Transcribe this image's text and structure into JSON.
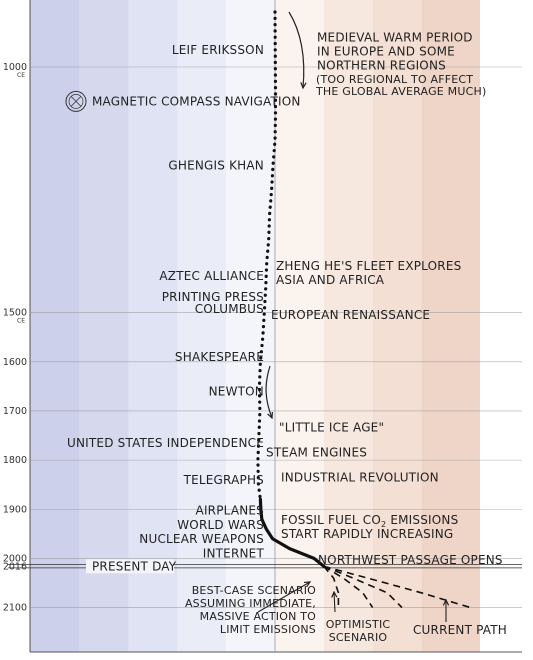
{
  "chart_data": {
    "type": "line",
    "orientation": "vertical-time",
    "y_axis": {
      "ticks": [
        {
          "year": 1000,
          "label": "1000",
          "sub": "CE"
        },
        {
          "year": 1500,
          "label": "1500",
          "sub": "CE"
        },
        {
          "year": 1600,
          "label": "1600"
        },
        {
          "year": 1700,
          "label": "1700"
        },
        {
          "year": 1800,
          "label": "1800"
        },
        {
          "year": 1900,
          "label": "1900"
        },
        {
          "year": 2000,
          "label": "2000"
        },
        {
          "year": 2016,
          "label": "2016"
        },
        {
          "year": 2100,
          "label": "2100"
        }
      ],
      "ylim": [
        888,
        2150
      ]
    },
    "x_axis": {
      "xlim": [
        -6,
        4.2
      ],
      "zero_line": 0
    },
    "present_day": {
      "year": 2016,
      "label": "PRESENT DAY"
    },
    "background_bands": [
      {
        "x0": -6.0,
        "x1": -5.0,
        "color": "#c2c6e6"
      },
      {
        "x0": -5.0,
        "x1": -4.0,
        "color": "#ccd0ea"
      },
      {
        "x0": -4.0,
        "x1": -3.0,
        "color": "#d6d9ee"
      },
      {
        "x0": -3.0,
        "x1": -2.0,
        "color": "#e0e3f3"
      },
      {
        "x0": -2.0,
        "x1": -1.0,
        "color": "#eaecf7"
      },
      {
        "x0": -1.0,
        "x1": 0.0,
        "color": "#f4f5fb"
      },
      {
        "x0": 0.0,
        "x1": 1.0,
        "color": "#fbf3ee"
      },
      {
        "x0": 1.0,
        "x1": 2.0,
        "color": "#f7e8df"
      },
      {
        "x0": 2.0,
        "x1": 3.0,
        "color": "#f3dfd3"
      },
      {
        "x0": 3.0,
        "x1": 4.2,
        "color": "#eed5c8"
      }
    ],
    "series": [
      {
        "style": "dotted",
        "points": [
          [
            888,
            0.0
          ],
          [
            1050,
            0.01
          ],
          [
            1100,
            0.01
          ],
          [
            1150,
            0.0
          ],
          [
            1200,
            -0.04
          ],
          [
            1250,
            -0.07
          ],
          [
            1300,
            -0.11
          ],
          [
            1350,
            -0.13
          ],
          [
            1400,
            -0.17
          ],
          [
            1450,
            -0.19
          ],
          [
            1500,
            -0.22
          ],
          [
            1550,
            -0.25
          ],
          [
            1600,
            -0.3
          ],
          [
            1650,
            -0.32
          ],
          [
            1700,
            -0.31
          ],
          [
            1750,
            -0.33
          ],
          [
            1800,
            -0.35
          ],
          [
            1850,
            -0.34
          ],
          [
            1880,
            -0.3
          ]
        ]
      },
      {
        "style": "solid",
        "points": [
          [
            1880,
            -0.3
          ],
          [
            1900,
            -0.29
          ],
          [
            1920,
            -0.27
          ],
          [
            1940,
            -0.18
          ],
          [
            1960,
            -0.05
          ],
          [
            1980,
            0.3
          ],
          [
            2000,
            0.8
          ],
          [
            2016,
            1.0
          ]
        ]
      },
      {
        "style": "dashed",
        "label_key": "best_case",
        "points": [
          [
            2016,
            1.0
          ],
          [
            2040,
            1.2
          ],
          [
            2070,
            1.3
          ],
          [
            2100,
            1.3
          ]
        ]
      },
      {
        "style": "dashed",
        "label_key": "optimistic",
        "points": [
          [
            2016,
            1.0
          ],
          [
            2040,
            1.4
          ],
          [
            2070,
            1.8
          ],
          [
            2100,
            2.0
          ]
        ]
      },
      {
        "style": "dashed",
        "label_key": "optimistic",
        "points": [
          [
            2016,
            1.0
          ],
          [
            2040,
            1.6
          ],
          [
            2070,
            2.3
          ],
          [
            2100,
            2.6
          ]
        ]
      },
      {
        "style": "dashed",
        "label_key": "current",
        "points": [
          [
            2016,
            1.0
          ],
          [
            2040,
            1.9
          ],
          [
            2070,
            3.0
          ],
          [
            2100,
            4.0
          ]
        ]
      }
    ],
    "annotations": {
      "left": [
        {
          "year": 965,
          "lines": [
            "LEIF ERIKSSON"
          ]
        },
        {
          "year": 1070,
          "lines": [
            "MAGNETIC COMPASS NAVIGATION"
          ],
          "icon": "compass-icon"
        },
        {
          "year": 1200,
          "lines": [
            "GHENGIS KHAN"
          ]
        },
        {
          "year": 1425,
          "lines": [
            "AZTEC ALLIANCE"
          ]
        },
        {
          "year": 1468,
          "lines": [
            "PRINTING PRESS"
          ]
        },
        {
          "year": 1492,
          "lines": [
            "COLUMBUS"
          ]
        },
        {
          "year": 1590,
          "lines": [
            "SHAKESPEARE"
          ]
        },
        {
          "year": 1660,
          "lines": [
            "NEWTON"
          ]
        },
        {
          "year": 1765,
          "lines": [
            "UNITED STATES INDEPENDENCE"
          ]
        },
        {
          "year": 1840,
          "lines": [
            "TELEGRAPHS"
          ]
        },
        {
          "year": 1903,
          "lines": [
            "AIRPLANES"
          ]
        },
        {
          "year": 1932,
          "lines": [
            "WORLD WARS"
          ]
        },
        {
          "year": 1961,
          "lines": [
            "NUCLEAR WEAPONS"
          ]
        },
        {
          "year": 1990,
          "lines": [
            "INTERNET"
          ]
        }
      ],
      "right": [
        {
          "year": 940,
          "lines": [
            "MEDIEVAL WARM PERIOD",
            "IN EUROPE AND SOME",
            "NORTHERN REGIONS"
          ]
        },
        {
          "year": 1405,
          "lines": [
            "ZHENG HE'S FLEET EXPLORES",
            "ASIA AND AFRICA"
          ]
        },
        {
          "year": 1505,
          "lines": [
            "EUROPEAN RENAISSANCE"
          ]
        },
        {
          "year": 1734,
          "lines": [
            "\"LITTLE ICE AGE\""
          ]
        },
        {
          "year": 1785,
          "lines": [
            "STEAM ENGINES"
          ]
        },
        {
          "year": 1835,
          "lines": [
            "INDUSTRIAL REVOLUTION"
          ]
        },
        {
          "year": 2003,
          "lines": [
            "NORTHWEST PASSAGE OPENS"
          ]
        }
      ],
      "note": {
        "year": 1020,
        "lines": [
          "(TOO REGIONAL TO AFFECT",
          "THE GLOBAL AVERAGE MUCH)"
        ]
      },
      "fossil_fuel": {
        "year": 1930,
        "line1_pre": "FOSSIL FUEL CO",
        "line1_sub": "2",
        "line1_post": " EMISSIONS",
        "line2": "START RAPIDLY INCREASING"
      },
      "scenario_labels": {
        "best_case": [
          "BEST-CASE SCENARIO",
          "ASSUMING IMMEDIATE,",
          "MASSIVE ACTION TO",
          "LIMIT EMISSIONS"
        ],
        "optimistic": [
          "OPTIMISTIC",
          "SCENARIO"
        ],
        "current": [
          "CURRENT PATH"
        ]
      }
    }
  }
}
